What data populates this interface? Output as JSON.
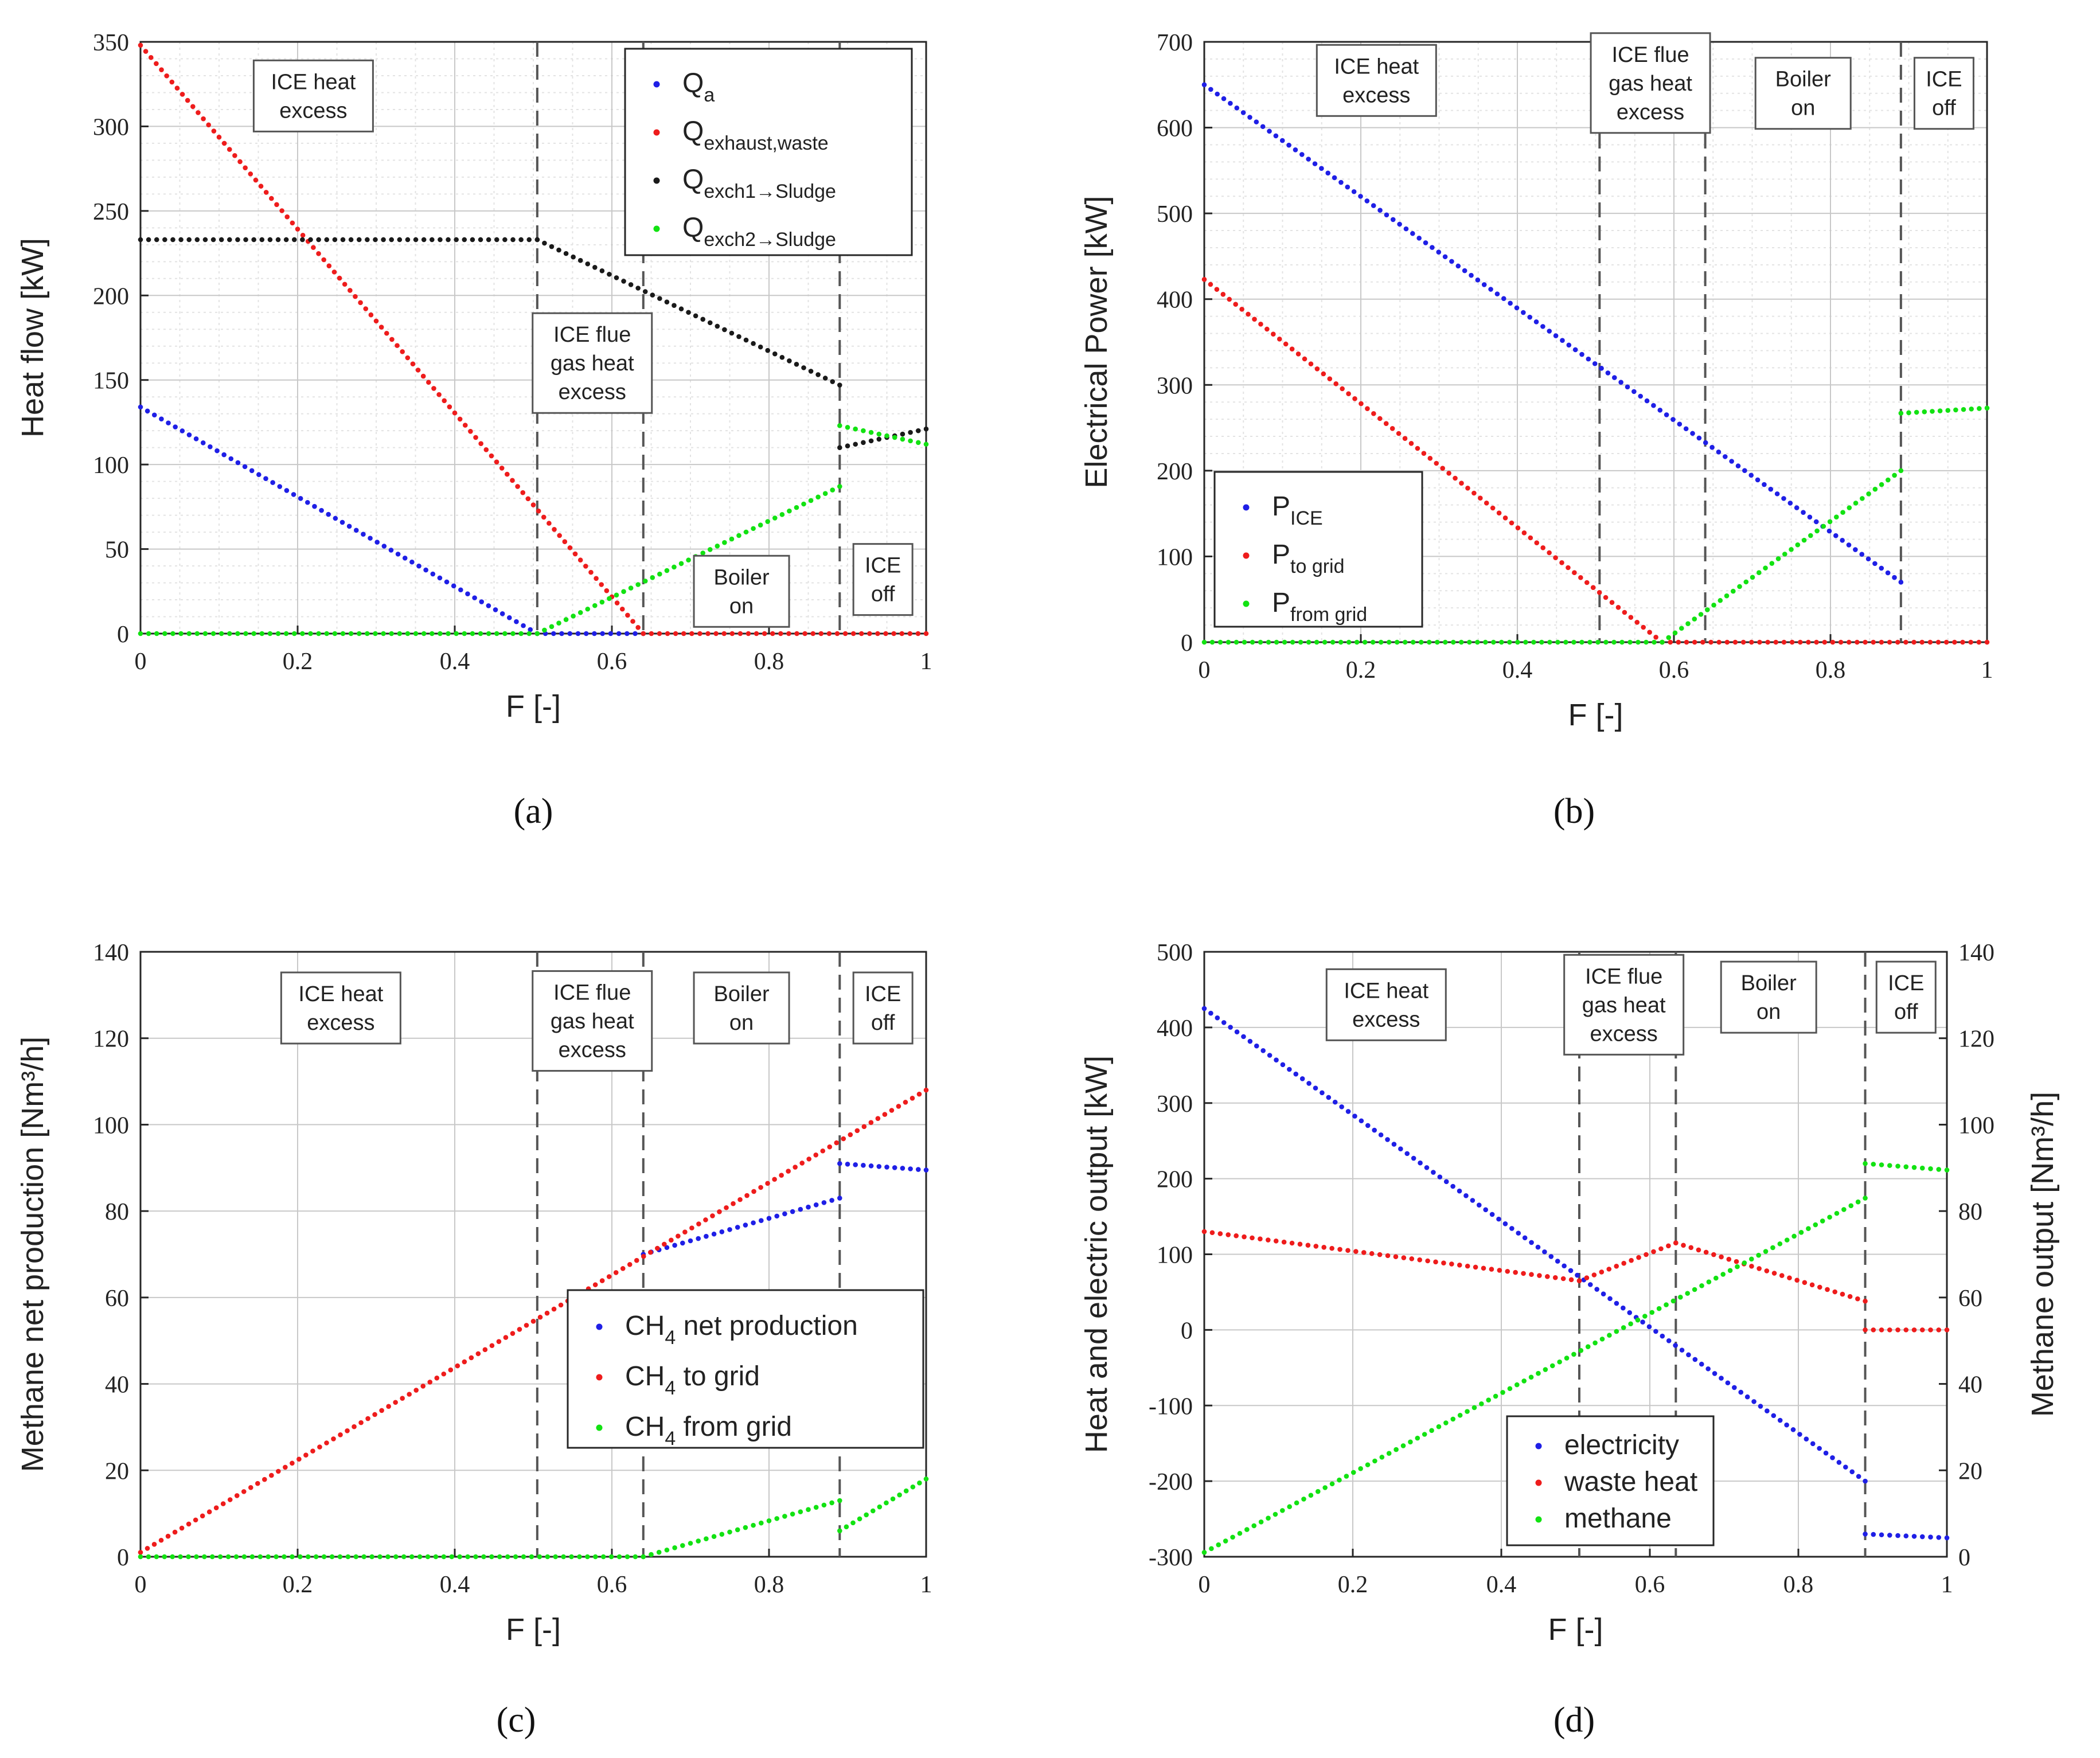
{
  "figure": {
    "panels": [
      {
        "label": "(a)"
      },
      {
        "label": "(b)"
      },
      {
        "label": "(c)"
      },
      {
        "label": "(d)"
      }
    ]
  },
  "colors": {
    "blue": "#1f1fe6",
    "red": "#ee1c1c",
    "black": "#1a1a1a",
    "green": "#12e212",
    "axis": "#262626",
    "grid_major": "#c8c8c8",
    "grid_minor": "#e3e3e3",
    "vline": "#555555"
  },
  "chart_data": [
    {
      "type": "scatter",
      "panel": "(a)",
      "xlabel": "F [-]",
      "ylabel": "Heat flow [kW]",
      "xlim": [
        0,
        1
      ],
      "ylim": [
        0,
        350
      ],
      "xticks": [
        0,
        0.2,
        0.4,
        0.6,
        0.8,
        1
      ],
      "xtick_labels": [
        "0",
        "0.2",
        "0.4",
        "0.6",
        "0.8",
        "1"
      ],
      "yticks": [
        0,
        50,
        100,
        150,
        200,
        250,
        300,
        350
      ],
      "ytick_labels": [
        "0",
        "50",
        "100",
        "150",
        "200",
        "250",
        "300",
        "350"
      ],
      "minor_grid": true,
      "vlines": [
        0.505,
        0.64,
        0.89
      ],
      "annotations": [
        {
          "lines": [
            "ICE heat",
            "excess"
          ],
          "x": 0.22,
          "y": 318
        },
        {
          "lines": [
            "ICE flue",
            "gas heat",
            "excess"
          ],
          "x": 0.575,
          "y": 160
        },
        {
          "lines": [
            "Boiler",
            "on"
          ],
          "x": 0.765,
          "y": 25
        },
        {
          "lines": [
            "ICE",
            "off"
          ],
          "x": 0.945,
          "y": 32
        }
      ],
      "legend": {
        "position": "top-right",
        "entries": [
          {
            "main": "Q",
            "sub": "a",
            "color": "blue"
          },
          {
            "main": "Q",
            "sub": "exhaust,waste",
            "color": "red"
          },
          {
            "main": "Q",
            "sub": "exch1→Sludge",
            "color": "black"
          },
          {
            "main": "Q",
            "sub": "exch2→Sludge",
            "color": "green"
          }
        ]
      },
      "series": [
        {
          "name": "Qa",
          "color": "blue",
          "segments": [
            {
              "x": [
                0.0,
                0.505
              ],
              "y": [
                134,
                0
              ]
            },
            {
              "x": [
                0.505,
                0.64
              ],
              "y": [
                0,
                0
              ]
            }
          ]
        },
        {
          "name": "Qexhaust,waste",
          "color": "red",
          "segments": [
            {
              "x": [
                0.0,
                0.64
              ],
              "y": [
                348,
                0
              ]
            },
            {
              "x": [
                0.64,
                1.0
              ],
              "y": [
                0,
                0
              ]
            }
          ]
        },
        {
          "name": "Qexch1→Sludge",
          "color": "black",
          "segments": [
            {
              "x": [
                0.0,
                0.505
              ],
              "y": [
                233,
                233
              ]
            },
            {
              "x": [
                0.505,
                0.89
              ],
              "y": [
                233,
                147
              ]
            },
            {
              "x": [
                0.89,
                1.0
              ],
              "y": [
                110,
                121
              ]
            }
          ]
        },
        {
          "name": "Qexch2→Sludge",
          "color": "green",
          "segments": [
            {
              "x": [
                0.0,
                0.505
              ],
              "y": [
                0,
                0
              ]
            },
            {
              "x": [
                0.505,
                0.89
              ],
              "y": [
                0,
                87
              ]
            },
            {
              "x": [
                0.89,
                1.0
              ],
              "y": [
                123,
                112
              ]
            }
          ]
        }
      ]
    },
    {
      "type": "scatter",
      "panel": "(b)",
      "xlabel": "F [-]",
      "ylabel": "Electrical Power [kW]",
      "xlim": [
        0,
        1
      ],
      "ylim": [
        0,
        700
      ],
      "xticks": [
        0,
        0.2,
        0.4,
        0.6,
        0.8,
        1
      ],
      "xtick_labels": [
        "0",
        "0.2",
        "0.4",
        "0.6",
        "0.8",
        "1"
      ],
      "yticks": [
        0,
        100,
        200,
        300,
        400,
        500,
        600,
        700
      ],
      "ytick_labels": [
        "0",
        "100",
        "200",
        "300",
        "400",
        "500",
        "600",
        "700"
      ],
      "minor_grid": true,
      "vlines": [
        0.505,
        0.64,
        0.89
      ],
      "annotations": [
        {
          "lines": [
            "ICE heat",
            "excess"
          ],
          "x": 0.22,
          "y": 655
        },
        {
          "lines": [
            "ICE flue",
            "gas heat",
            "excess"
          ],
          "x": 0.57,
          "y": 652
        },
        {
          "lines": [
            "Boiler",
            "on"
          ],
          "x": 0.765,
          "y": 640
        },
        {
          "lines": [
            "ICE",
            "off"
          ],
          "x": 0.945,
          "y": 640
        }
      ],
      "legend": {
        "position": "bottom-left",
        "entries": [
          {
            "main": "P",
            "sub": "ICE",
            "color": "blue"
          },
          {
            "main": "P",
            "sub": "to grid",
            "color": "red"
          },
          {
            "main": "P",
            "sub": "from grid",
            "color": "green"
          }
        ]
      },
      "series": [
        {
          "name": "PICE",
          "color": "blue",
          "segments": [
            {
              "x": [
                0.0,
                0.89
              ],
              "y": [
                650,
                70
              ]
            }
          ]
        },
        {
          "name": "Pto grid",
          "color": "red",
          "segments": [
            {
              "x": [
                0.0,
                0.585
              ],
              "y": [
                423,
                0
              ]
            },
            {
              "x": [
                0.585,
                1.0
              ],
              "y": [
                0,
                0
              ]
            }
          ]
        },
        {
          "name": "Pfrom grid",
          "color": "green",
          "segments": [
            {
              "x": [
                0.0,
                0.585
              ],
              "y": [
                0,
                0
              ]
            },
            {
              "x": [
                0.585,
                0.89
              ],
              "y": [
                0,
                200
              ]
            },
            {
              "x": [
                0.89,
                1.0
              ],
              "y": [
                267,
                273
              ]
            }
          ]
        }
      ]
    },
    {
      "type": "scatter",
      "panel": "(c)",
      "xlabel": "F [-]",
      "ylabel": "Methane net production [Nm³/h]",
      "xlim": [
        0,
        1
      ],
      "ylim": [
        0,
        140
      ],
      "xticks": [
        0,
        0.2,
        0.4,
        0.6,
        0.8,
        1
      ],
      "xtick_labels": [
        "0",
        "0.2",
        "0.4",
        "0.6",
        "0.8",
        "1"
      ],
      "yticks": [
        0,
        20,
        40,
        60,
        80,
        100,
        120,
        140
      ],
      "ytick_labels": [
        "0",
        "20",
        "40",
        "60",
        "80",
        "100",
        "120",
        "140"
      ],
      "minor_grid": false,
      "vlines": [
        0.505,
        0.64,
        0.89
      ],
      "annotations": [
        {
          "lines": [
            "ICE heat",
            "excess"
          ],
          "x": 0.255,
          "y": 127
        },
        {
          "lines": [
            "ICE flue",
            "gas heat",
            "excess"
          ],
          "x": 0.575,
          "y": 124
        },
        {
          "lines": [
            "Boiler",
            "on"
          ],
          "x": 0.765,
          "y": 127
        },
        {
          "lines": [
            "ICE",
            "off"
          ],
          "x": 0.945,
          "y": 127
        }
      ],
      "legend": {
        "position": "center-right",
        "entries": [
          {
            "main": "CH",
            "sub": "4",
            "rest": " net production",
            "color": "blue"
          },
          {
            "main": "CH",
            "sub": "4",
            "rest": " to grid",
            "color": "red"
          },
          {
            "main": "CH",
            "sub": "4",
            "rest": " from grid",
            "color": "green"
          }
        ]
      },
      "series": [
        {
          "name": "CH4 net production",
          "color": "blue",
          "segments": [
            {
              "x": [
                0.64,
                0.89
              ],
              "y": [
                70,
                83
              ]
            },
            {
              "x": [
                0.89,
                1.0
              ],
              "y": [
                91,
                89.5
              ]
            }
          ]
        },
        {
          "name": "CH4 to grid",
          "color": "red",
          "segments": [
            {
              "x": [
                0.0,
                1.0
              ],
              "y": [
                1,
                108
              ]
            }
          ]
        },
        {
          "name": "CH4 from grid",
          "color": "green",
          "segments": [
            {
              "x": [
                0.0,
                0.64
              ],
              "y": [
                0,
                0
              ]
            },
            {
              "x": [
                0.64,
                0.89
              ],
              "y": [
                0,
                13
              ]
            },
            {
              "x": [
                0.89,
                1.0
              ],
              "y": [
                6,
                18
              ]
            }
          ]
        }
      ]
    },
    {
      "type": "scatter",
      "panel": "(d)",
      "xlabel": "F [-]",
      "ylabel": "Heat and electric output [kW]",
      "ylabel_right": "Methane output [Nm³/h]",
      "xlim": [
        0,
        1
      ],
      "ylim": [
        -300,
        500
      ],
      "ylim_right": [
        0,
        140
      ],
      "xticks": [
        0,
        0.2,
        0.4,
        0.6,
        0.8,
        1
      ],
      "xtick_labels": [
        "0",
        "0.2",
        "0.4",
        "0.6",
        "0.8",
        "1"
      ],
      "yticks": [
        -300,
        -200,
        -100,
        0,
        100,
        200,
        300,
        400,
        500
      ],
      "ytick_labels": [
        "-300",
        "-200",
        "-100",
        "0",
        "100",
        "200",
        "300",
        "400",
        "500"
      ],
      "yticks_right": [
        0,
        20,
        40,
        60,
        80,
        100,
        120,
        140
      ],
      "ytick_labels_right": [
        "0",
        "20",
        "40",
        "60",
        "80",
        "100",
        "120",
        "140"
      ],
      "minor_grid": false,
      "vlines": [
        0.505,
        0.635,
        0.89
      ],
      "annotations": [
        {
          "lines": [
            "ICE heat",
            "excess"
          ],
          "x": 0.245,
          "y": 430
        },
        {
          "lines": [
            "ICE flue",
            "gas heat",
            "excess"
          ],
          "x": 0.565,
          "y": 430
        },
        {
          "lines": [
            "Boiler",
            "on"
          ],
          "x": 0.76,
          "y": 440
        },
        {
          "lines": [
            "ICE",
            "off"
          ],
          "x": 0.945,
          "y": 440
        }
      ],
      "legend": {
        "position": "bottom-center",
        "entries": [
          {
            "main": "electricity",
            "color": "blue"
          },
          {
            "main": "waste heat",
            "color": "red"
          },
          {
            "main": "methane",
            "color": "green"
          }
        ]
      },
      "series": [
        {
          "name": "electricity",
          "axis": "left",
          "color": "blue",
          "segments": [
            {
              "x": [
                0.0,
                0.89
              ],
              "y": [
                425,
                -200
              ]
            },
            {
              "x": [
                0.89,
                1.0
              ],
              "y": [
                -270,
                -275
              ]
            }
          ]
        },
        {
          "name": "waste heat",
          "axis": "left",
          "color": "red",
          "segments": [
            {
              "x": [
                0.0,
                0.505
              ],
              "y": [
                130,
                65
              ]
            },
            {
              "x": [
                0.505,
                0.635
              ],
              "y": [
                65,
                115
              ]
            },
            {
              "x": [
                0.635,
                0.89
              ],
              "y": [
                115,
                38
              ]
            },
            {
              "x": [
                0.89,
                1.0
              ],
              "y": [
                0,
                0
              ]
            }
          ]
        },
        {
          "name": "methane",
          "axis": "right",
          "color": "green",
          "segments": [
            {
              "x": [
                0.0,
                0.89
              ],
              "y": [
                1,
                83
              ]
            },
            {
              "x": [
                0.89,
                1.0
              ],
              "y": [
                91,
                89.5
              ]
            }
          ]
        }
      ]
    }
  ]
}
